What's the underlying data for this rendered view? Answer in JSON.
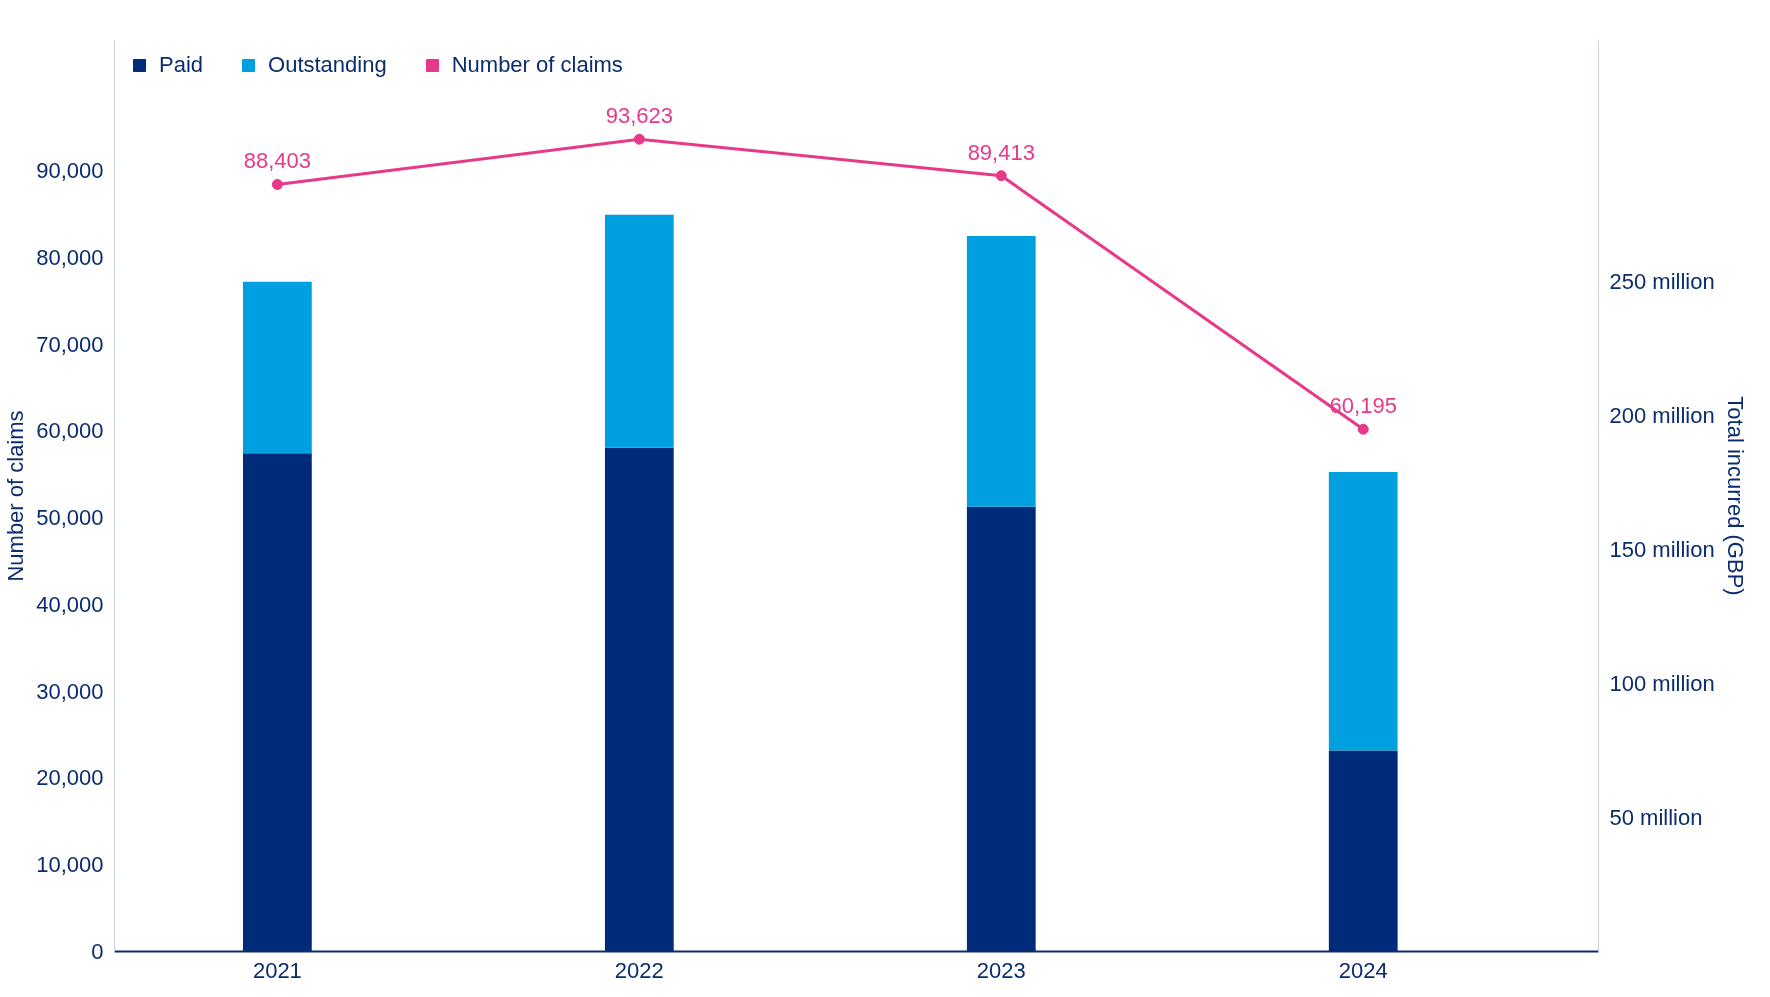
{
  "chart_data": {
    "type": "bar",
    "stacked": true,
    "categories": [
      "2021",
      "2022",
      "2023",
      "2024"
    ],
    "ylabel": "Number of claims",
    "y2label": "Total incurred (GBP)",
    "ylim": [
      0,
      105000
    ],
    "yticks": [
      {
        "value": 0,
        "label": "0"
      },
      {
        "value": 10000,
        "label": "10,000"
      },
      {
        "value": 20000,
        "label": "20,000"
      },
      {
        "value": 30000,
        "label": "30,000"
      },
      {
        "value": 40000,
        "label": "40,000"
      },
      {
        "value": 50000,
        "label": "50,000"
      },
      {
        "value": 60000,
        "label": "60,000"
      },
      {
        "value": 70000,
        "label": "70,000"
      },
      {
        "value": 80000,
        "label": "80,000"
      },
      {
        "value": 90000,
        "label": "90,000"
      }
    ],
    "y2lim": [
      0,
      340000000
    ],
    "y2ticks": [
      {
        "value": 50000000,
        "label": "50 million"
      },
      {
        "value": 100000000,
        "label": "100 million"
      },
      {
        "value": 150000000,
        "label": "150 million"
      },
      {
        "value": 200000000,
        "label": "200 million"
      },
      {
        "value": 250000000,
        "label": "250 million"
      }
    ],
    "series": [
      {
        "name": "Paid",
        "axis": "y2",
        "color": "#002b7a",
        "values": [
          186000000,
          188000000,
          166000000,
          75000000
        ]
      },
      {
        "name": "Outstanding",
        "axis": "y2",
        "color": "#009fe0",
        "values": [
          64000000,
          87000000,
          101000000,
          104000000
        ]
      },
      {
        "name": "Number of claims",
        "type": "line",
        "color": "#e8388a",
        "marker": "circle",
        "values": [
          88403,
          93623,
          89413,
          60195
        ],
        "value_labels": [
          "88,403",
          "93,623",
          "89,413",
          "60,195"
        ]
      }
    ],
    "grid": false,
    "legend": "top left"
  }
}
